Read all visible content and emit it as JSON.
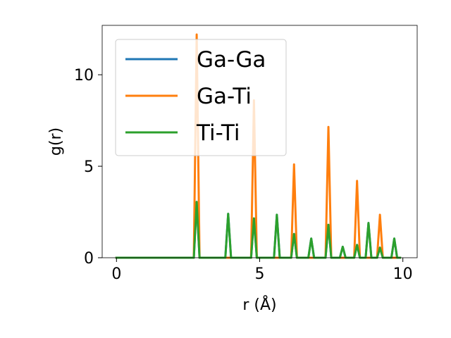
{
  "chart_data": {
    "type": "line",
    "title": "",
    "xlabel": "r (Å)",
    "ylabel": "g(r)",
    "xlim": [
      -0.5,
      10.5
    ],
    "ylim": [
      0,
      12.7
    ],
    "xticks": [
      0,
      5,
      10
    ],
    "xtick_labels": [
      "0",
      "5",
      "10"
    ],
    "yticks": [
      0,
      5,
      10
    ],
    "ytick_labels": [
      "0",
      "5",
      "10"
    ],
    "grid": false,
    "legend_position": "upper-left",
    "x": [
      0.0,
      2.7,
      2.8,
      2.9,
      3.8,
      3.9,
      4.0,
      4.7,
      4.8,
      4.9,
      5.5,
      5.6,
      5.7,
      6.1,
      6.2,
      6.3,
      6.7,
      6.8,
      6.9,
      7.3,
      7.4,
      7.5,
      7.8,
      7.9,
      8.0,
      8.3,
      8.4,
      8.5,
      8.7,
      8.8,
      8.9,
      9.1,
      9.2,
      9.3,
      9.6,
      9.7,
      9.8,
      9.9
    ],
    "series": [
      {
        "name": "Ga-Ga",
        "color": "#1f77b4",
        "values": [
          0,
          0,
          3.05,
          0,
          0,
          2.4,
          0,
          0,
          2.15,
          0,
          0,
          2.35,
          0,
          0,
          1.3,
          0,
          0,
          1.05,
          0,
          0,
          1.8,
          0,
          0,
          0.6,
          0,
          0,
          0.7,
          0,
          0,
          1.9,
          0,
          0,
          0.55,
          0,
          0,
          1.05,
          0,
          0
        ]
      },
      {
        "name": "Ga-Ti",
        "color": "#ff7f0e",
        "values": [
          0,
          0,
          12.2,
          0,
          0,
          0,
          0,
          0,
          8.6,
          0,
          0,
          0,
          0,
          0,
          5.1,
          0,
          0,
          0,
          0,
          0,
          7.15,
          0,
          0,
          0,
          0,
          0,
          4.2,
          0,
          0,
          0,
          0,
          0,
          2.35,
          0,
          0,
          0,
          0,
          0
        ]
      },
      {
        "name": "Ti-Ti",
        "color": "#2ca02c",
        "values": [
          0,
          0,
          3.05,
          0,
          0,
          2.4,
          0,
          0,
          2.15,
          0,
          0,
          2.35,
          0,
          0,
          1.3,
          0,
          0,
          1.05,
          0,
          0,
          1.8,
          0,
          0,
          0.6,
          0,
          0,
          0.7,
          0,
          0,
          1.9,
          0,
          0,
          0.55,
          0,
          0,
          1.05,
          0,
          0
        ]
      }
    ]
  }
}
